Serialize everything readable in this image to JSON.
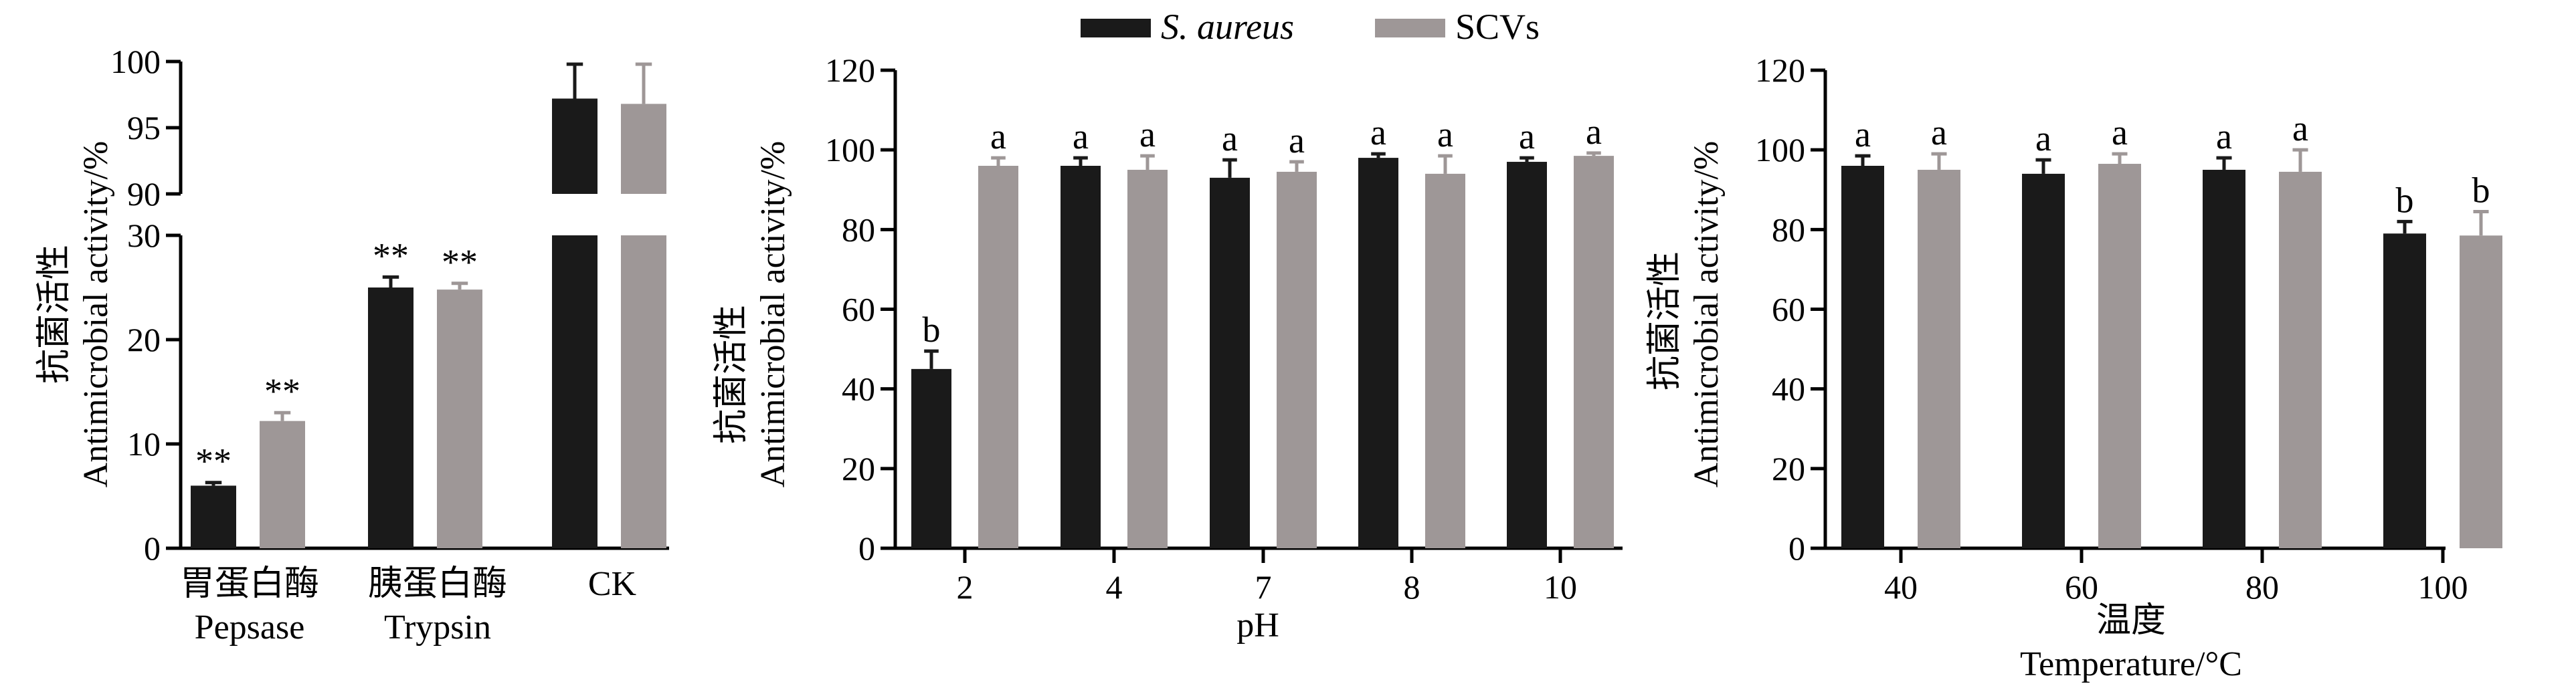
{
  "legend": {
    "series": [
      {
        "name": "S. aureus",
        "color": "#1a1a1a",
        "italic": true
      },
      {
        "name": "SCVs",
        "color": "#9e9797",
        "italic": false
      }
    ]
  },
  "chart_data": [
    {
      "type": "bar",
      "ylabel_cn": "抗菌活性",
      "ylabel_en": "Antimicrobial activity/%",
      "axis_break": true,
      "lower_range": [
        0,
        30
      ],
      "upper_range": [
        90,
        100
      ],
      "lower_ticks": [
        "0",
        "10",
        "20",
        "30"
      ],
      "upper_ticks": [
        "90",
        "95",
        "100"
      ],
      "categories": [
        {
          "cn": "胃蛋白酶",
          "en": "Pepsase"
        },
        {
          "cn": "胰蛋白酶",
          "en": "Trypsin"
        },
        {
          "cn": "CK",
          "en": ""
        }
      ],
      "series": [
        {
          "name": "S. aureus",
          "values": [
            6,
            25,
            97.2
          ],
          "errors": [
            0.3,
            1,
            2.6
          ],
          "labels": [
            "**",
            "**",
            ""
          ]
        },
        {
          "name": "SCVs",
          "values": [
            12.2,
            24.8,
            96.8
          ],
          "errors": [
            0.8,
            0.6,
            3.0
          ],
          "labels": [
            "**",
            "**",
            ""
          ]
        }
      ]
    },
    {
      "type": "bar",
      "ylabel_cn": "抗菌活性",
      "ylabel_en": "Antimicrobial activity/%",
      "xlabel": "pH",
      "ylim": [
        0,
        120
      ],
      "yticks": [
        "0",
        "20",
        "40",
        "60",
        "80",
        "100",
        "120"
      ],
      "categories": [
        "2",
        "4",
        "7",
        "8",
        "10"
      ],
      "series": [
        {
          "name": "S. aureus",
          "values": [
            45,
            96,
            93,
            98,
            97
          ],
          "errors": [
            4.5,
            2,
            4.5,
            1,
            1
          ],
          "labels": [
            "b",
            "a",
            "a",
            "a",
            "a"
          ]
        },
        {
          "name": "SCVs",
          "values": [
            96,
            95,
            94.5,
            94,
            98.5
          ],
          "errors": [
            2,
            3.5,
            2.5,
            4.5,
            0.7
          ],
          "labels": [
            "a",
            "a",
            "a",
            "a",
            "a"
          ]
        }
      ]
    },
    {
      "type": "bar",
      "ylabel_cn": "抗菌活性",
      "ylabel_en": "Antimicrobial activity/%",
      "xlabel_cn": "温度",
      "xlabel_en": "Temperature/°C",
      "ylim": [
        0,
        120
      ],
      "yticks": [
        "0",
        "20",
        "40",
        "60",
        "80",
        "100",
        "120"
      ],
      "categories": [
        "40",
        "60",
        "80",
        "100"
      ],
      "series": [
        {
          "name": "S. aureus",
          "values": [
            96,
            94,
            95,
            79
          ],
          "errors": [
            2.5,
            3.5,
            3,
            3
          ],
          "labels": [
            "a",
            "a",
            "a",
            "b"
          ]
        },
        {
          "name": "SCVs",
          "values": [
            95,
            96.5,
            94.5,
            78.5
          ],
          "errors": [
            4,
            2.5,
            5.5,
            6
          ],
          "labels": [
            "a",
            "a",
            "a",
            "b"
          ]
        }
      ]
    }
  ]
}
